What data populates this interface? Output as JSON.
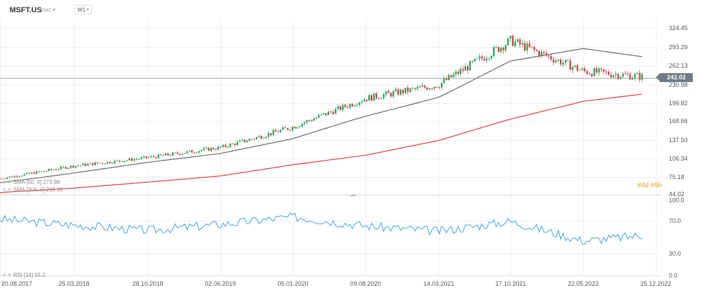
{
  "header": {
    "symbol": "MSFT.US",
    "market": "SMC",
    "timeframe": "W1"
  },
  "price_axis": {
    "ticks": [
      "324.45",
      "293.29",
      "262.13",
      "242.02",
      "230.98",
      "199.82",
      "168.66",
      "137.50",
      "106.34",
      "75.18",
      "44.02"
    ],
    "tick_values": [
      324.45,
      293.29,
      262.13,
      242.02,
      230.98,
      199.82,
      168.66,
      137.5,
      106.34,
      75.18,
      44.02
    ]
  },
  "rsi_axis": {
    "ticks": [
      "100.0",
      "70.0",
      "30.0",
      "0.0"
    ],
    "tick_values": [
      100,
      70,
      30,
      0
    ]
  },
  "date_axis": {
    "ticks": [
      "20.08.2017",
      "25.03.2018",
      "28.10.2018",
      "02.06.2019",
      "05.01.2020",
      "09.08.2020",
      "14.03.2021",
      "17.10.2021",
      "22.05.2022",
      "25.12.2022"
    ]
  },
  "indicators": {
    "sma50": "SMA [50, 0] 273.98",
    "sma200": "SMA [200, 0] 218.33",
    "rsi": "RSI [14] 55.2"
  },
  "countdown": "#4d #9h",
  "current_price": "242.02",
  "colors": {
    "up": "#26a65b",
    "down": "#e0393e",
    "sma50": "#666666",
    "sma200": "#e0393e",
    "rsi": "#3a9ee6",
    "price_line": "#888888"
  },
  "chart_data": [
    {
      "type": "line",
      "title": "MSFT.US W1",
      "x": [
        "20.08.2017",
        "25.03.2018",
        "28.10.2018",
        "02.06.2019",
        "05.01.2020",
        "09.08.2020",
        "14.03.2021",
        "17.10.2021",
        "22.05.2022",
        "25.12.2022"
      ],
      "ylim": [
        44.02,
        340
      ],
      "series": [
        {
          "name": "MSFT.US close",
          "values": [
            72.5,
            94,
            108,
            125,
            159,
            208,
            231,
            304,
            253,
            242
          ]
        },
        {
          "name": "SMA [50, 0] 273.98",
          "values": [
            65,
            82,
            100,
            115,
            140,
            177,
            210,
            270,
            291,
            274
          ]
        },
        {
          "name": "SMA [200, 0] 218.33",
          "values": [
            47,
            55,
            66,
            77,
            96,
            112,
            137,
            172,
            203,
            218
          ]
        }
      ]
    },
    {
      "type": "line",
      "title": "RSI [14] 55.2",
      "x": [
        "20.08.2017",
        "25.03.2018",
        "28.10.2018",
        "02.06.2019",
        "05.01.2020",
        "09.08.2020",
        "14.03.2021",
        "17.10.2021",
        "22.05.2022",
        "25.12.2022"
      ],
      "ylim": [
        0,
        100
      ],
      "series": [
        {
          "name": "RSI [14] 55.2",
          "values": [
            75,
            67,
            60,
            68,
            78,
            66,
            59,
            72,
            46,
            55
          ]
        }
      ]
    }
  ]
}
